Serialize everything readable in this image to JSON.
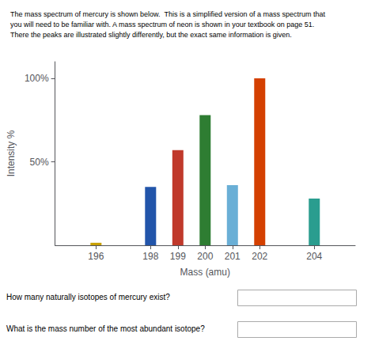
{
  "chart_data": {
    "type": "bar",
    "title": "The mass spectrum of mercury is shown below.  This is a simplified version of a mass spectrum that\nyou will need to be familiar with. A mass spectrum of neon is shown in your textbook on page 51.\nThere the peaks are illustrated slightly differently, but the exact same information is given.",
    "x": [
      196,
      198,
      199,
      200,
      201,
      202,
      204
    ],
    "values": [
      1.5,
      35,
      57,
      78,
      36,
      100,
      28
    ],
    "colors": [
      "#c8a000",
      "#2255aa",
      "#c0392b",
      "#2e7d32",
      "#6aafd6",
      "#d44000",
      "#2a9d8f"
    ],
    "xlabel": "Mass (amu)",
    "ylabel": "Intensity %",
    "xlim": [
      194.5,
      205.5
    ],
    "xticks": [
      196,
      198,
      199,
      200,
      201,
      202,
      204
    ],
    "ylim": [
      0,
      110
    ],
    "yticks": [
      {
        "value": 50,
        "label": "50%"
      },
      {
        "value": 100,
        "label": "100%"
      }
    ],
    "grid": false,
    "annotations": [
      "How many naturally isotopes of mercury exist?",
      "What is the mass number of the most abundant isotope?"
    ]
  }
}
